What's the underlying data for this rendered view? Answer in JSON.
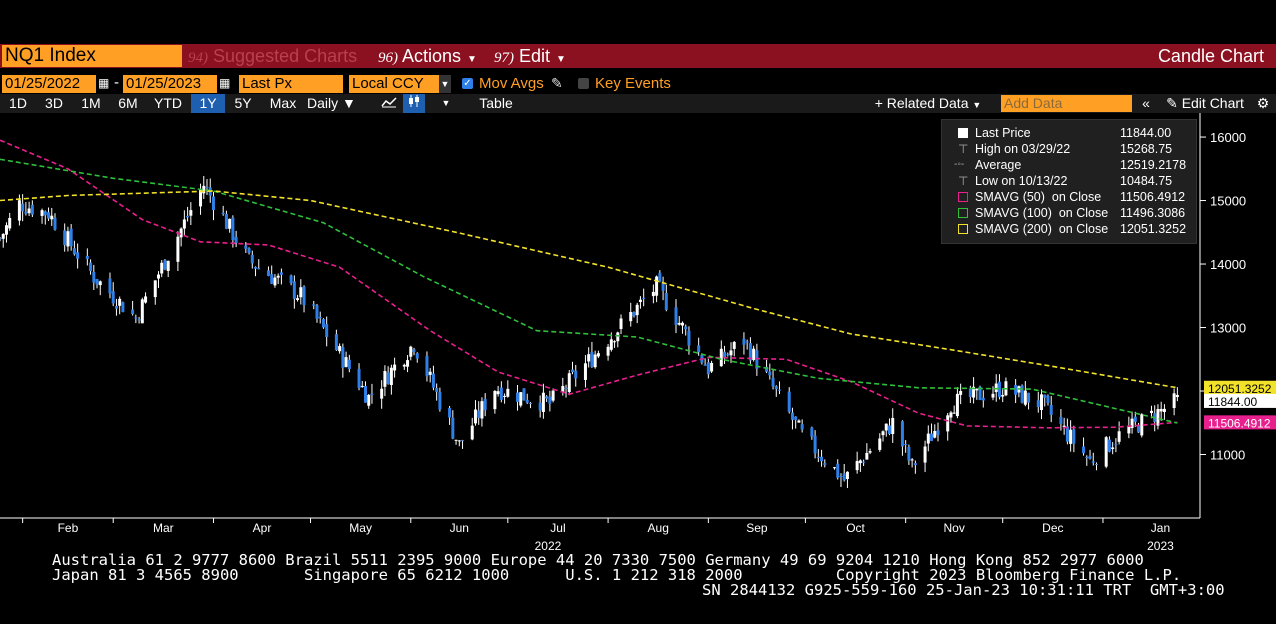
{
  "header": {
    "ticker": "NQ1 Index",
    "menus": [
      {
        "num": "94)",
        "label": "Suggested Charts",
        "dim": true
      },
      {
        "num": "96)",
        "label": "Actions"
      },
      {
        "num": "97)",
        "label": "Edit"
      }
    ],
    "chart_type": "Candle Chart"
  },
  "controls": {
    "start_date": "01/25/2022",
    "end_date": "01/25/2023",
    "field": "Last Px",
    "currency": "Local CCY",
    "mov_avgs_label": "Mov Avgs",
    "mov_avgs_checked": true,
    "key_events_label": "Key Events",
    "key_events_checked": false
  },
  "toolbar": {
    "ranges": [
      "1D",
      "3D",
      "1M",
      "6M",
      "YTD",
      "1Y",
      "5Y",
      "Max"
    ],
    "selected_range": "1Y",
    "periodicity": "Daily",
    "table_label": "Table",
    "related_data": "Related Data",
    "add_data_placeholder": "Add Data",
    "edit_chart": "Edit Chart"
  },
  "legend": {
    "rows": [
      {
        "label": "Last Price",
        "value": "11844.00"
      },
      {
        "label": "High on 03/29/22",
        "value": "15268.75"
      },
      {
        "label": "Average",
        "value": "12519.2178"
      },
      {
        "label": "Low on 10/13/22",
        "value": "10484.75"
      },
      {
        "label": "SMAVG (50)  on Close",
        "value": "11506.4912"
      },
      {
        "label": "SMAVG (100)  on Close",
        "value": "11496.3086"
      },
      {
        "label": "SMAVG (200)  on Close",
        "value": "12051.3252"
      }
    ]
  },
  "colors": {
    "up": "#ffffff",
    "down": "#2f7fe8",
    "sma50": "#e8208e",
    "sma100": "#2fbf3a",
    "sma200": "#f2e22a",
    "accent": "#ffa024",
    "header_bg": "#8b1020"
  },
  "chart_data": {
    "type": "candlestick",
    "y_ticks": [
      11000,
      12000,
      13000,
      14000,
      15000,
      16000
    ],
    "ylim": [
      10000,
      16300
    ],
    "x_month_labels": [
      "Feb",
      "Mar",
      "Apr",
      "May",
      "Jun",
      "Jul",
      "Aug",
      "Sep",
      "Oct",
      "Nov",
      "Dec",
      "Jan"
    ],
    "x_year_labels": [
      "2022",
      "2023"
    ],
    "price_tags": [
      "12051.3252",
      "11844.00",
      "11506.4912"
    ],
    "close_path": [
      {
        "date": "2022-01-25",
        "close": 14400
      },
      {
        "date": "2022-01-31",
        "close": 14950
      },
      {
        "date": "2022-02-09",
        "close": 14800
      },
      {
        "date": "2022-02-23",
        "close": 13800
      },
      {
        "date": "2022-03-08",
        "close": 13150
      },
      {
        "date": "2022-03-29",
        "close": 15250
      },
      {
        "date": "2022-04-12",
        "close": 14050
      },
      {
        "date": "2022-04-28",
        "close": 13500
      },
      {
        "date": "2022-05-19",
        "close": 11900
      },
      {
        "date": "2022-06-02",
        "close": 12750
      },
      {
        "date": "2022-06-16",
        "close": 11150
      },
      {
        "date": "2022-06-27",
        "close": 12050
      },
      {
        "date": "2022-07-14",
        "close": 11800
      },
      {
        "date": "2022-08-16",
        "close": 13650
      },
      {
        "date": "2022-09-01",
        "close": 12350
      },
      {
        "date": "2022-09-12",
        "close": 12800
      },
      {
        "date": "2022-09-30",
        "close": 11300
      },
      {
        "date": "2022-10-13",
        "close": 10600
      },
      {
        "date": "2022-10-28",
        "close": 11500
      },
      {
        "date": "2022-11-03",
        "close": 10800
      },
      {
        "date": "2022-11-15",
        "close": 11800
      },
      {
        "date": "2022-12-01",
        "close": 12050
      },
      {
        "date": "2022-12-13",
        "close": 11800
      },
      {
        "date": "2022-12-28",
        "close": 10900
      },
      {
        "date": "2023-01-06",
        "close": 11300
      },
      {
        "date": "2023-01-24",
        "close": 11844
      }
    ],
    "series": [
      {
        "name": "SMAVG (50)",
        "points": [
          {
            "date": "2022-01-25",
            "value": 15950
          },
          {
            "date": "2022-02-15",
            "value": 15500
          },
          {
            "date": "2022-03-10",
            "value": 14700
          },
          {
            "date": "2022-03-28",
            "value": 14350
          },
          {
            "date": "2022-04-18",
            "value": 14300
          },
          {
            "date": "2022-05-10",
            "value": 13950
          },
          {
            "date": "2022-06-07",
            "value": 12950
          },
          {
            "date": "2022-06-28",
            "value": 12300
          },
          {
            "date": "2022-07-20",
            "value": 11950
          },
          {
            "date": "2022-08-10",
            "value": 12250
          },
          {
            "date": "2022-09-01",
            "value": 12530
          },
          {
            "date": "2022-09-25",
            "value": 12500
          },
          {
            "date": "2022-10-15",
            "value": 12150
          },
          {
            "date": "2022-11-05",
            "value": 11650
          },
          {
            "date": "2022-11-20",
            "value": 11450
          },
          {
            "date": "2022-12-15",
            "value": 11420
          },
          {
            "date": "2023-01-05",
            "value": 11430
          },
          {
            "date": "2023-01-24",
            "value": 11506
          }
        ]
      },
      {
        "name": "SMAVG (100)",
        "points": [
          {
            "date": "2022-01-25",
            "value": 15650
          },
          {
            "date": "2022-03-01",
            "value": 15350
          },
          {
            "date": "2022-04-01",
            "value": 15150
          },
          {
            "date": "2022-05-05",
            "value": 14650
          },
          {
            "date": "2022-06-05",
            "value": 13800
          },
          {
            "date": "2022-07-10",
            "value": 12950
          },
          {
            "date": "2022-08-10",
            "value": 12850
          },
          {
            "date": "2022-09-05",
            "value": 12500
          },
          {
            "date": "2022-10-05",
            "value": 12200
          },
          {
            "date": "2022-11-05",
            "value": 12050
          },
          {
            "date": "2022-12-10",
            "value": 12030
          },
          {
            "date": "2023-01-24",
            "value": 11496
          }
        ]
      },
      {
        "name": "SMAVG (200)",
        "points": [
          {
            "date": "2022-01-25",
            "value": 15000
          },
          {
            "date": "2022-02-15",
            "value": 15080
          },
          {
            "date": "2022-04-01",
            "value": 15150
          },
          {
            "date": "2022-05-01",
            "value": 15000
          },
          {
            "date": "2022-06-15",
            "value": 14500
          },
          {
            "date": "2022-08-01",
            "value": 13950
          },
          {
            "date": "2022-09-15",
            "value": 13300
          },
          {
            "date": "2022-10-15",
            "value": 12900
          },
          {
            "date": "2022-11-15",
            "value": 12650
          },
          {
            "date": "2022-12-15",
            "value": 12400
          },
          {
            "date": "2023-01-24",
            "value": 12051
          }
        ]
      }
    ]
  },
  "footer": {
    "line1": "Australia 61 2 9777 8600 Brazil 5511 2395 9000 Europe 44 20 7330 7500 Germany 49 69 9204 1210 Hong Kong 852 2977 6000",
    "line2": "Japan 81 3 4565 8900       Singapore 65 6212 1000      U.S. 1 212 318 2000          Copyright 2023 Bloomberg Finance L.P.",
    "line3": "SN 2844132 G925-559-160 25-Jan-23 10:31:11 TRT  GMT+3:00"
  }
}
